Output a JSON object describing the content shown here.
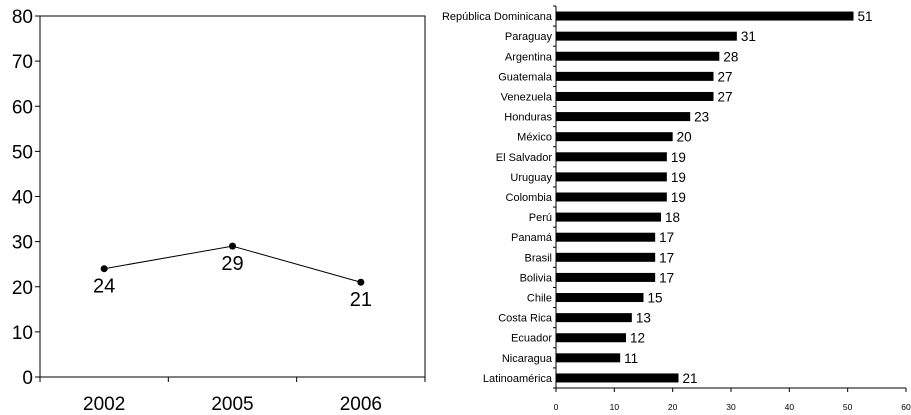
{
  "chart_data": [
    {
      "type": "line",
      "title": "",
      "xlabel": "",
      "ylabel": "",
      "x": [
        "2002",
        "2005",
        "2006"
      ],
      "values": [
        24,
        29,
        21
      ],
      "data_labels": [
        "24",
        "29",
        "21"
      ],
      "ylim": [
        0,
        80
      ],
      "yticks": [
        "0",
        "10",
        "20",
        "30",
        "40",
        "50",
        "60",
        "70",
        "80"
      ],
      "grid": false,
      "legend": "none",
      "line_color": "#000000"
    },
    {
      "type": "bar",
      "orientation": "horizontal",
      "title": "",
      "xlabel": "",
      "ylabel": "",
      "categories": [
        "República Dominicana",
        "Paraguay",
        "Argentina",
        "Guatemala",
        "Venezuela",
        "Honduras",
        "México",
        "El Salvador",
        "Uruguay",
        "Colombia",
        "Perú",
        "Panamá",
        "Brasil",
        "Bolivia",
        "Chile",
        "Costa Rica",
        "Ecuador",
        "Nicaragua",
        "Latinoamérica"
      ],
      "values": [
        51,
        31,
        28,
        27,
        27,
        23,
        20,
        19,
        19,
        19,
        18,
        17,
        17,
        17,
        15,
        13,
        12,
        11,
        21
      ],
      "data_labels": [
        "51",
        "31",
        "28",
        "27",
        "27",
        "23",
        "20",
        "19",
        "19",
        "19",
        "18",
        "17",
        "17",
        "17",
        "15",
        "13",
        "12",
        "11",
        "21"
      ],
      "xlim": [
        0,
        60
      ],
      "xticks": [
        "0",
        "10",
        "20",
        "30",
        "40",
        "50",
        "60"
      ],
      "grid": false,
      "legend": "none",
      "bar_color": "#000000"
    }
  ]
}
